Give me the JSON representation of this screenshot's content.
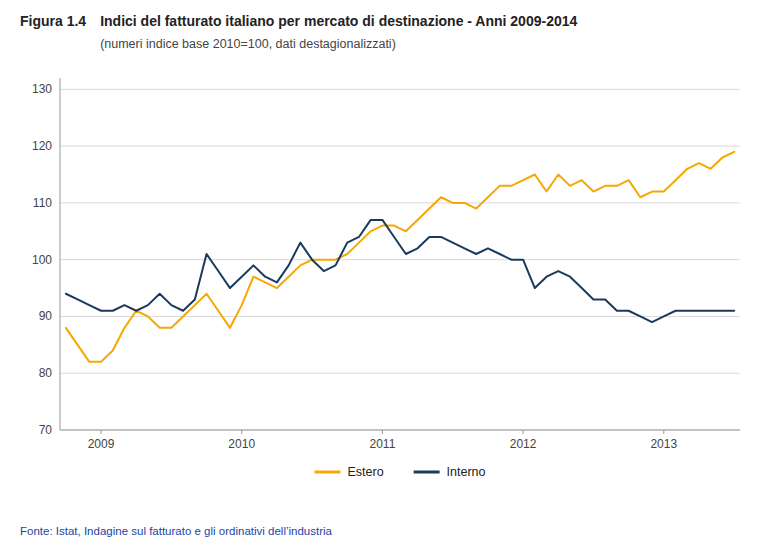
{
  "chart_data": {
    "type": "line",
    "title": "Indici del fatturato italiano per mercato di destinazione - Anni 2009-2014",
    "subtitle": "(numeri indice base 2010=100, dati destagionalizzati)",
    "annotations": [
      "Figura 1.4",
      "Fonte: Istat, Indagine sul fatturato e gli ordinativi dell’industria"
    ],
    "categories": [
      null,
      null,
      null,
      "2009",
      null,
      null,
      null,
      null,
      null,
      null,
      null,
      null,
      null,
      null,
      null,
      "2010",
      null,
      null,
      null,
      null,
      null,
      null,
      null,
      null,
      null,
      null,
      null,
      "2011",
      null,
      null,
      null,
      null,
      null,
      null,
      null,
      null,
      null,
      null,
      null,
      "2012",
      null,
      null,
      null,
      null,
      null,
      null,
      null,
      null,
      null,
      null,
      null,
      "2013",
      null,
      null,
      null,
      null,
      null,
      null
    ],
    "series": [
      {
        "name": "Estero",
        "color": "#F5A800",
        "values": [
          88,
          85,
          82,
          82,
          84,
          88,
          91,
          90,
          88,
          88,
          90,
          92,
          94,
          91,
          88,
          92,
          97,
          96,
          95,
          97,
          99,
          100,
          100,
          100,
          101,
          103,
          105,
          106,
          106,
          105,
          107,
          109,
          111,
          110,
          110,
          109,
          111,
          113,
          113,
          114,
          115,
          112,
          115,
          113,
          114,
          112,
          113,
          113,
          114,
          111,
          112,
          112,
          114,
          116,
          117,
          116,
          118,
          119
        ]
      },
      {
        "name": "Interno",
        "color": "#1B3A5C",
        "values": [
          94,
          93,
          92,
          91,
          91,
          92,
          91,
          92,
          94,
          92,
          91,
          93,
          101,
          98,
          95,
          97,
          99,
          97,
          96,
          99,
          103,
          100,
          98,
          99,
          103,
          104,
          107,
          107,
          104,
          101,
          102,
          104,
          104,
          103,
          102,
          101,
          102,
          101,
          100,
          100,
          95,
          97,
          98,
          97,
          95,
          93,
          93,
          91,
          91,
          90,
          89,
          90,
          91,
          91,
          91,
          91,
          91,
          91
        ]
      }
    ],
    "ylim": [
      70,
      132
    ],
    "yticks": [
      70,
      80,
      90,
      100,
      110,
      120,
      130
    ],
    "grid": true,
    "legend": "bottom"
  }
}
